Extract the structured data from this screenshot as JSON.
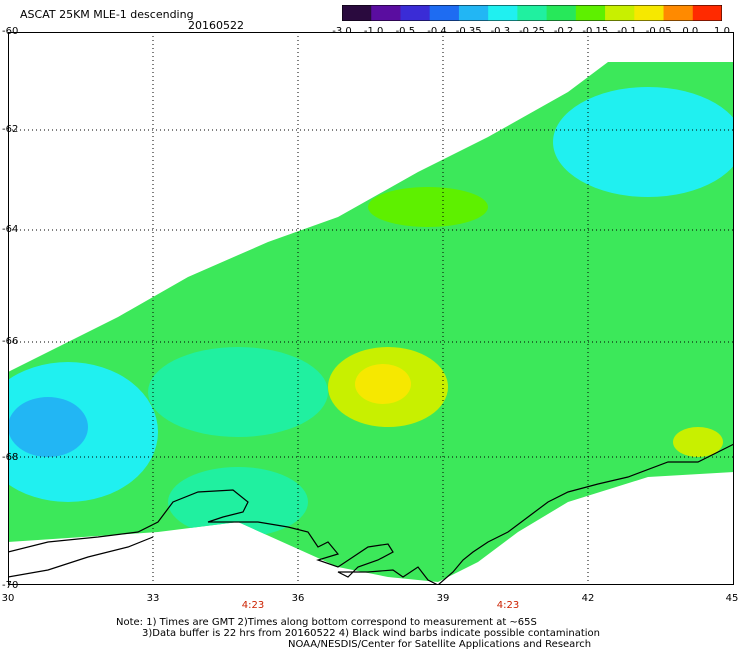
{
  "header": {
    "title": "ASCAT 25KM MLE-1 descending",
    "date": "20160522"
  },
  "colorbar": {
    "tick_labels": [
      "-3.0",
      "-1.0",
      "-0.5",
      "-0.4",
      "-0.35",
      "-0.3",
      "-0.25",
      "-0.2",
      "-0.15",
      "-0.1",
      "-0.05",
      "0.0",
      "1.0"
    ],
    "colors": [
      "#2a0a3e",
      "#5a0da0",
      "#3a2cd6",
      "#1e6cf2",
      "#22b6f4",
      "#20f0f0",
      "#20f0a0",
      "#27e85a",
      "#5ef000",
      "#c8f000",
      "#f6e800",
      "#ff8a00",
      "#ff2a00"
    ]
  },
  "map": {
    "lat_labels": [
      "-60",
      "-62",
      "-64",
      "-66",
      "-68",
      "-70"
    ],
    "lon_labels": [
      "30",
      "33",
      "36",
      "39",
      "42",
      "45"
    ],
    "time_labels": [
      "4:23",
      "4:23"
    ],
    "coast_color": "#000000",
    "grid_color": "#000000"
  },
  "footer": {
    "line1": "Note: 1) Times are GMT 2)Times along bottom correspond to measurement at ~65S",
    "line2": "3)Data buffer is 22 hrs from 20160522 4) Black wind barbs indicate possible contamination",
    "line3": "NOAA/NESDIS/Center for Satellite Applications and Research"
  }
}
